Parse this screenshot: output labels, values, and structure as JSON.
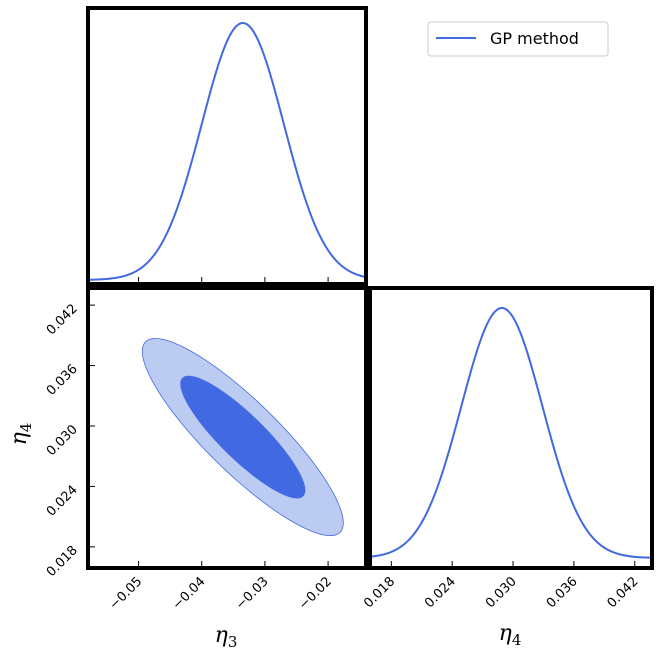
{
  "chart_data": {
    "type": "corner_plot",
    "legend": {
      "label": "GP method",
      "color": "#4169e1",
      "placement": "top-right"
    },
    "parameters": [
      {
        "name": "eta3",
        "symbol": "η",
        "subscript": "3",
        "mean": -0.0335,
        "sigma": 0.0065,
        "range": [
          -0.058,
          -0.014
        ],
        "ticks": [
          "−0.05",
          "−0.04",
          "−0.03",
          "−0.02"
        ],
        "tick_values": [
          -0.05,
          -0.04,
          -0.03,
          -0.02
        ]
      },
      {
        "name": "eta4",
        "symbol": "η",
        "subscript": "4",
        "mean": 0.0289,
        "sigma": 0.004,
        "range": [
          0.0159,
          0.0437
        ],
        "ticks": [
          "0.018",
          "0.024",
          "0.030",
          "0.036",
          "0.042"
        ],
        "tick_values": [
          0.018,
          0.024,
          0.03,
          0.036,
          0.042
        ]
      }
    ],
    "panels": [
      {
        "name": "marginal-eta3",
        "type": "line",
        "param": "eta3"
      },
      {
        "name": "joint-eta3-eta4",
        "type": "contour",
        "x": "eta3",
        "y": "eta4",
        "correlation": -0.87,
        "levels": [
          "68%",
          "95%"
        ],
        "colors": {
          "inner": "#4169e1",
          "outer": "#bccbf2",
          "outer_edge": "#4169e1"
        }
      },
      {
        "name": "marginal-eta4",
        "type": "line",
        "param": "eta4"
      }
    ]
  }
}
